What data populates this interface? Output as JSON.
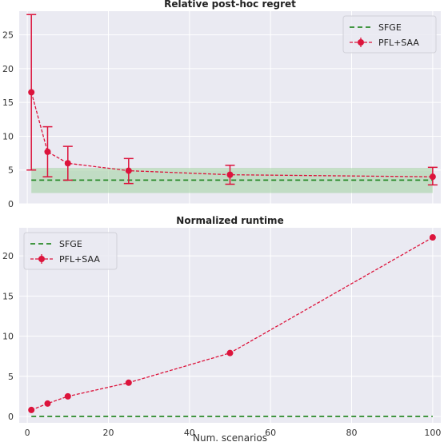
{
  "xlabel": "Num. scenarios",
  "x_ticks": [
    0,
    20,
    40,
    60,
    80,
    100
  ],
  "colors": {
    "panel_bg": "#eaeaf2",
    "grid": "#ffffff",
    "sfge": "#2a8a2a",
    "sfge_band": "#9fcf9f",
    "pfl": "#dc143c"
  },
  "chart_data": [
    {
      "type": "line",
      "title": "Relative post-hoc regret",
      "xlabel": "",
      "ylabel": "",
      "xlim": [
        -2,
        102
      ],
      "ylim": [
        0,
        28.5
      ],
      "y_ticks": [
        0,
        5,
        10,
        15,
        20,
        25
      ],
      "grid": true,
      "legend": "top-right",
      "series": [
        {
          "name": "SFGE",
          "style": "dashed",
          "x": [
            1,
            100
          ],
          "y": [
            3.5,
            3.5
          ],
          "band": [
            1.6,
            5.3
          ]
        },
        {
          "name": "PFL+SAA",
          "style": "dashed-marker",
          "x": [
            1,
            5,
            10,
            25,
            50,
            100
          ],
          "y": [
            16.5,
            7.7,
            6.0,
            4.9,
            4.3,
            4.0
          ],
          "err_low": [
            5.0,
            4.0,
            3.5,
            3.0,
            2.9,
            2.8
          ],
          "err_high": [
            28.0,
            11.4,
            8.5,
            6.7,
            5.7,
            5.4
          ]
        }
      ]
    },
    {
      "type": "line",
      "title": "Normalized runtime",
      "xlabel": "Num. scenarios",
      "ylabel": "",
      "xlim": [
        -2,
        102
      ],
      "ylim": [
        -0.8,
        23.5
      ],
      "y_ticks": [
        0,
        5,
        10,
        15,
        20
      ],
      "grid": true,
      "legend": "top-left",
      "series": [
        {
          "name": "SFGE",
          "style": "dashed",
          "x": [
            1,
            100
          ],
          "y": [
            0,
            0
          ]
        },
        {
          "name": "PFL+SAA",
          "style": "dashed-marker",
          "x": [
            1,
            5,
            10,
            25,
            50,
            100
          ],
          "y": [
            0.8,
            1.6,
            2.5,
            4.2,
            7.9,
            22.3
          ]
        }
      ]
    }
  ]
}
